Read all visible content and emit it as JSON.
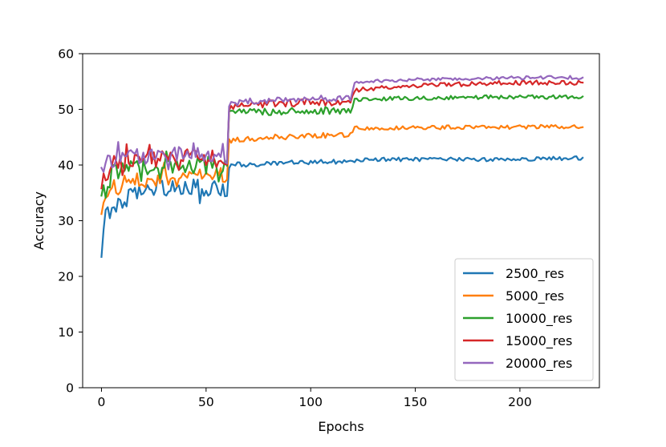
{
  "chart_data": {
    "type": "line",
    "title": "",
    "xlabel": "Epochs",
    "ylabel": "Accuracy",
    "xlim": [
      -9,
      238
    ],
    "ylim": [
      0,
      60
    ],
    "xticks": [
      0,
      50,
      100,
      150,
      200
    ],
    "yticks": [
      0,
      10,
      20,
      30,
      40,
      50,
      60
    ],
    "grid": false,
    "legend_position": "lower-right",
    "series": [
      {
        "name": "2500_res",
        "color": "#1f77b4",
        "anchors": [
          [
            0,
            23.5
          ],
          [
            2,
            31.5
          ],
          [
            5,
            31.0
          ],
          [
            10,
            33.5
          ],
          [
            15,
            34.5
          ],
          [
            20,
            35.0
          ],
          [
            25,
            35.2
          ],
          [
            30,
            35.8
          ],
          [
            35,
            35.9
          ],
          [
            40,
            36.0
          ],
          [
            45,
            36.3
          ],
          [
            50,
            35.5
          ],
          [
            55,
            35.8
          ],
          [
            60,
            35.5
          ],
          [
            61,
            39.6
          ],
          [
            65,
            40.2
          ],
          [
            70,
            40.0
          ],
          [
            80,
            40.2
          ],
          [
            90,
            40.4
          ],
          [
            100,
            40.5
          ],
          [
            110,
            40.6
          ],
          [
            119,
            40.5
          ],
          [
            121,
            40.8
          ],
          [
            130,
            41.0
          ],
          [
            150,
            41.0
          ],
          [
            170,
            41.0
          ],
          [
            190,
            41.0
          ],
          [
            210,
            41.1
          ],
          [
            230,
            41.3
          ]
        ],
        "noise": [
          0.9,
          0.25,
          0.22
        ]
      },
      {
        "name": "5000_res",
        "color": "#ff7f0e",
        "anchors": [
          [
            0,
            31.2
          ],
          [
            2,
            33.0
          ],
          [
            5,
            36.0
          ],
          [
            10,
            36.5
          ],
          [
            20,
            37.5
          ],
          [
            30,
            38.0
          ],
          [
            40,
            37.5
          ],
          [
            50,
            38.0
          ],
          [
            55,
            38.5
          ],
          [
            60,
            37.8
          ],
          [
            61,
            44.3
          ],
          [
            70,
            44.7
          ],
          [
            80,
            45.0
          ],
          [
            90,
            45.0
          ],
          [
            100,
            45.2
          ],
          [
            110,
            45.4
          ],
          [
            119,
            45.5
          ],
          [
            121,
            46.6
          ],
          [
            130,
            46.7
          ],
          [
            150,
            46.7
          ],
          [
            170,
            46.8
          ],
          [
            190,
            46.8
          ],
          [
            210,
            46.9
          ],
          [
            230,
            46.8
          ]
        ],
        "noise": [
          1.0,
          0.3,
          0.22
        ]
      },
      {
        "name": "10000_res",
        "color": "#2ca02c",
        "anchors": [
          [
            0,
            34.5
          ],
          [
            2,
            35.5
          ],
          [
            5,
            38.5
          ],
          [
            10,
            39.0
          ],
          [
            20,
            39.8
          ],
          [
            30,
            40.0
          ],
          [
            40,
            40.2
          ],
          [
            50,
            40.0
          ],
          [
            55,
            39.8
          ],
          [
            60,
            39.5
          ],
          [
            61,
            49.5
          ],
          [
            70,
            49.5
          ],
          [
            80,
            49.6
          ],
          [
            90,
            49.7
          ],
          [
            100,
            49.8
          ],
          [
            110,
            49.8
          ],
          [
            119,
            49.8
          ],
          [
            121,
            51.6
          ],
          [
            130,
            51.9
          ],
          [
            150,
            52.0
          ],
          [
            170,
            52.1
          ],
          [
            190,
            52.2
          ],
          [
            210,
            52.2
          ],
          [
            230,
            52.3
          ]
        ],
        "noise": [
          1.0,
          0.4,
          0.22
        ]
      },
      {
        "name": "15000_res",
        "color": "#d62728",
        "anchors": [
          [
            0,
            35.8
          ],
          [
            2,
            38.0
          ],
          [
            5,
            40.0
          ],
          [
            10,
            40.5
          ],
          [
            20,
            41.0
          ],
          [
            30,
            41.2
          ],
          [
            40,
            41.3
          ],
          [
            50,
            41.0
          ],
          [
            55,
            41.2
          ],
          [
            60,
            40.5
          ],
          [
            61,
            50.3
          ],
          [
            70,
            50.8
          ],
          [
            80,
            51.0
          ],
          [
            90,
            51.1
          ],
          [
            100,
            51.3
          ],
          [
            110,
            51.3
          ],
          [
            119,
            51.4
          ],
          [
            121,
            53.5
          ],
          [
            130,
            53.8
          ],
          [
            150,
            54.3
          ],
          [
            170,
            54.5
          ],
          [
            190,
            54.7
          ],
          [
            210,
            54.8
          ],
          [
            230,
            54.8
          ]
        ],
        "noise": [
          1.0,
          0.4,
          0.25
        ]
      },
      {
        "name": "20000_res",
        "color": "#9467bd",
        "anchors": [
          [
            0,
            39.5
          ],
          [
            2,
            40.5
          ],
          [
            5,
            41.0
          ],
          [
            10,
            41.5
          ],
          [
            20,
            41.8
          ],
          [
            30,
            41.8
          ],
          [
            40,
            42.0
          ],
          [
            50,
            41.8
          ],
          [
            55,
            42.0
          ],
          [
            60,
            41.5
          ],
          [
            61,
            51.0
          ],
          [
            70,
            51.5
          ],
          [
            80,
            51.6
          ],
          [
            90,
            51.8
          ],
          [
            100,
            51.9
          ],
          [
            110,
            52.0
          ],
          [
            119,
            52.1
          ],
          [
            121,
            54.8
          ],
          [
            130,
            55.0
          ],
          [
            150,
            55.3
          ],
          [
            170,
            55.5
          ],
          [
            190,
            55.6
          ],
          [
            210,
            55.7
          ],
          [
            230,
            55.7
          ]
        ],
        "noise": [
          0.9,
          0.35,
          0.2
        ]
      }
    ]
  }
}
